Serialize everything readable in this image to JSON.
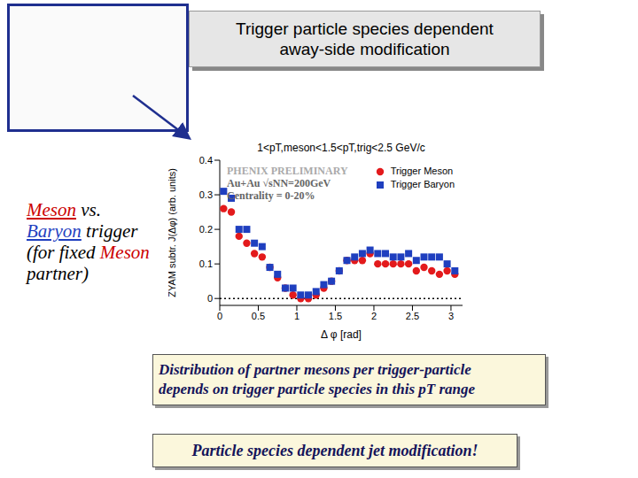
{
  "slide_title": [
    "Trigger particle species dependent",
    "away-side modification"
  ],
  "left_text": [
    {
      "text": "Meson",
      "color": "#cc0000",
      "underline": true
    },
    {
      "text": " vs.",
      "color": "#000000",
      "underline": false
    },
    {
      "text": "Baryon",
      "color": "#1f3fbf",
      "underline": true
    },
    {
      "text": " trigger",
      "color": "#000000",
      "underline": false
    },
    {
      "text": "(for fixed ",
      "color": "#000000",
      "underline": false
    },
    {
      "text": "Meson",
      "color": "#cc0000",
      "underline": false
    },
    {
      "text": "partner)",
      "color": "#000000",
      "underline": false
    }
  ],
  "conclusion": [
    "Distribution of partner mesons per trigger-particle",
    "depends on trigger particle species in this pT range"
  ],
  "highlight": "Particle species dependent jet modification!",
  "chart_data": {
    "type": "scatter",
    "title": "1<pT,meson<1.5<pT,trig<2.5 GeV/c",
    "x_label": "Δ φ [rad]",
    "y_label": "ZYAM subtr. J(Δφ) (arb. units)",
    "annotations": [
      "PHENIX PRELIMINARY",
      "Au+Au √sNN=200GeV",
      "Centrality = 0-20%"
    ],
    "xlim": [
      0,
      3.15
    ],
    "xticks": [
      0,
      0.5,
      1,
      1.5,
      2,
      2.5,
      3
    ],
    "ylim": [
      -0.02,
      0.4
    ],
    "yticks": [
      0,
      0.1,
      0.2,
      0.3,
      0.4
    ],
    "baseline": 0,
    "legend": "upper right",
    "series": [
      {
        "name": "Trigger Meson",
        "color": "#e31a1c",
        "marker": "circle",
        "x": [
          0.05,
          0.15,
          0.25,
          0.35,
          0.45,
          0.55,
          0.65,
          0.75,
          0.85,
          0.95,
          1.05,
          1.15,
          1.25,
          1.35,
          1.45,
          1.55,
          1.65,
          1.75,
          1.85,
          1.95,
          2.05,
          2.15,
          2.25,
          2.35,
          2.45,
          2.55,
          2.65,
          2.75,
          2.85,
          2.95,
          3.05
        ],
        "values": [
          0.26,
          0.25,
          0.18,
          0.16,
          0.13,
          0.12,
          0.09,
          0.06,
          0.03,
          0.01,
          0.0,
          0.0,
          0.01,
          0.03,
          0.05,
          0.08,
          0.11,
          0.11,
          0.11,
          0.13,
          0.1,
          0.1,
          0.1,
          0.1,
          0.1,
          0.08,
          0.09,
          0.08,
          0.07,
          0.08,
          0.07
        ]
      },
      {
        "name": "Trigger Baryon",
        "color": "#1f3fbf",
        "marker": "square",
        "x": [
          0.05,
          0.15,
          0.25,
          0.35,
          0.45,
          0.55,
          0.65,
          0.75,
          0.85,
          0.95,
          1.05,
          1.15,
          1.25,
          1.35,
          1.45,
          1.55,
          1.65,
          1.75,
          1.85,
          1.95,
          2.05,
          2.15,
          2.25,
          2.35,
          2.45,
          2.55,
          2.65,
          2.75,
          2.85,
          2.95,
          3.05
        ],
        "values": [
          0.31,
          0.29,
          0.2,
          0.2,
          0.16,
          0.15,
          0.09,
          0.07,
          0.03,
          0.03,
          0.01,
          0.01,
          0.02,
          0.04,
          0.05,
          0.08,
          0.11,
          0.12,
          0.13,
          0.14,
          0.13,
          0.13,
          0.12,
          0.12,
          0.13,
          0.11,
          0.12,
          0.12,
          0.12,
          0.1,
          0.08
        ]
      }
    ]
  }
}
